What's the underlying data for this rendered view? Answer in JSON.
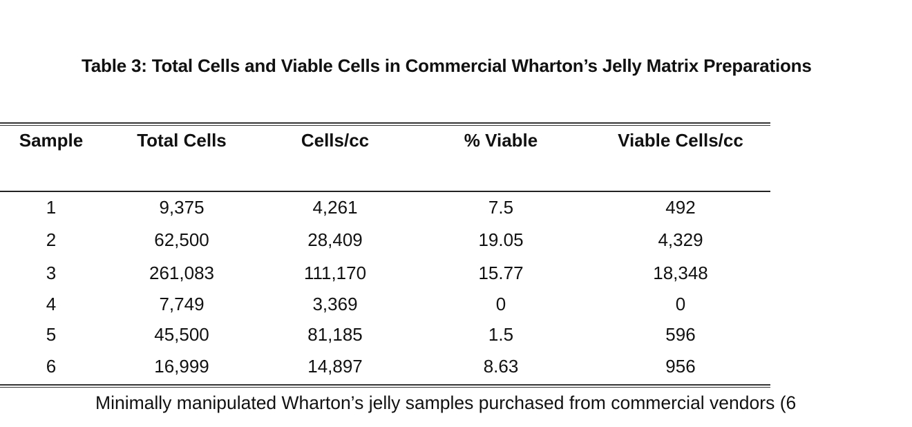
{
  "title": "Table 3: Total Cells and Viable Cells in Commercial Wharton’s Jelly Matrix Preparations",
  "table": {
    "headers": [
      "Sample",
      "Total Cells",
      "Cells/cc",
      "% Viable",
      "Viable Cells/cc"
    ],
    "rows": [
      [
        "1",
        "9,375",
        "4,261",
        "7.5",
        "492"
      ],
      [
        "2",
        "62,500",
        "28,409",
        "19.05",
        "4,329"
      ],
      [
        "3",
        "261,083",
        "111,170",
        "15.77",
        "18,348"
      ],
      [
        "4",
        "7,749",
        "3,369",
        "0",
        "0"
      ],
      [
        "5",
        "45,500",
        "81,185",
        "1.5",
        "596"
      ],
      [
        "6",
        "16,999",
        "14,897",
        "8.63",
        "956"
      ]
    ]
  },
  "caption": "Minimally manipulated Wharton’s jelly samples purchased from commercial vendors (6"
}
